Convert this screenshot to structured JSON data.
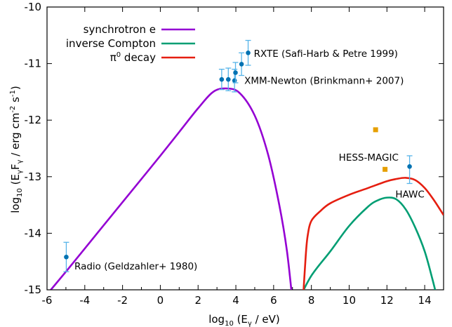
{
  "chart_data": {
    "type": "line",
    "title": "",
    "xlabel": {
      "prefix": "log",
      "sub": "10",
      "text": " (E",
      "sub2": "γ",
      "suffix": " / eV)"
    },
    "ylabel": {
      "prefix": "log",
      "sub": "10",
      "p1": " (E",
      "s1": "γ",
      "p2": "F",
      "s2": "γ",
      "p3": " / erg cm",
      "sup1": "-2",
      "p4": " s",
      "sup2": "-1",
      "p5": ")"
    },
    "xlim": [
      -6,
      15
    ],
    "ylim": [
      -15,
      -10
    ],
    "xticks": [
      "-6",
      "-4",
      "-2",
      "0",
      "2",
      "4",
      "6",
      "8",
      "10",
      "12",
      "14"
    ],
    "yticks": [
      "-15",
      "-14",
      "-13",
      "-12",
      "-11",
      "-10"
    ],
    "legend_position": "top-left",
    "series": [
      {
        "name": "synchrotron e",
        "color": "#9400d3",
        "x": [
          -6.3,
          -5,
          -4,
          -3,
          -2,
          -1,
          0,
          1,
          2,
          2.8,
          3.5,
          4.2,
          5,
          5.7,
          6.3,
          6.7,
          7.0
        ],
        "y": [
          -15.2,
          -14.68,
          -14.27,
          -13.86,
          -13.45,
          -13.04,
          -12.63,
          -12.21,
          -11.79,
          -11.5,
          -11.44,
          -11.52,
          -11.92,
          -12.6,
          -13.5,
          -14.3,
          -15.2
        ]
      },
      {
        "name": "inverse Compton",
        "color": "#009e73",
        "x": [
          7.3,
          8,
          9,
          10,
          11,
          11.5,
          12,
          12.5,
          13,
          13.5,
          14,
          14.4,
          14.7
        ],
        "y": [
          -15.2,
          -14.75,
          -14.32,
          -13.87,
          -13.53,
          -13.42,
          -13.37,
          -13.4,
          -13.58,
          -13.9,
          -14.32,
          -14.8,
          -15.2
        ]
      },
      {
        "name": "π",
        "name_sup": "0",
        "name_suffix": " decay",
        "color": "#e51e10",
        "x": [
          7.55,
          7.7,
          7.8,
          8.0,
          8.5,
          9,
          10,
          11,
          12,
          12.5,
          13,
          13.5,
          14,
          14.5,
          15
        ],
        "y": [
          -15.2,
          -14.4,
          -14.05,
          -13.78,
          -13.6,
          -13.47,
          -13.32,
          -13.2,
          -13.08,
          -13.04,
          -13.02,
          -13.06,
          -13.2,
          -13.42,
          -13.68
        ]
      }
    ],
    "points": [
      {
        "x": -4.98,
        "y": -14.42,
        "err": [
          0.26,
          0.26
        ]
      },
      {
        "x": 3.25,
        "y": -11.28,
        "err": [
          0.18,
          0.18
        ]
      },
      {
        "x": 3.6,
        "y": -11.28,
        "err": [
          0.2,
          0.2
        ]
      },
      {
        "x": 3.93,
        "y": -11.3,
        "err": [
          0.2,
          0.2
        ]
      },
      {
        "x": 3.98,
        "y": -11.16,
        "err": [
          0.18,
          0.18
        ]
      },
      {
        "x": 4.3,
        "y": -11.01,
        "err": [
          0.2,
          0.2
        ]
      },
      {
        "x": 4.65,
        "y": -10.81,
        "err": [
          0.22,
          0.22
        ]
      },
      {
        "x": 13.2,
        "y": -12.82,
        "err": [
          0.19,
          0.3
        ]
      }
    ],
    "squares": [
      {
        "x": 11.4,
        "y": -12.17
      },
      {
        "x": 11.9,
        "y": -12.87
      }
    ],
    "point_color": "#0072b2",
    "err_color": "#56b4e9",
    "square_color": "#e69f00",
    "annotations": [
      {
        "text": "RXTE (Safi-Harb & Petre 1999)",
        "x": 4.95,
        "y": -10.88
      },
      {
        "text": "XMM-Newton (Brinkmann+ 2007)",
        "x": 4.45,
        "y": -11.36
      },
      {
        "text": "HESS-MAGIC",
        "x": 9.45,
        "y": -12.72
      },
      {
        "text": "HAWC",
        "x": 12.45,
        "y": -13.37
      },
      {
        "text": "Radio (Geldzahler+ 1980)",
        "x": -4.55,
        "y": -14.64
      }
    ]
  }
}
